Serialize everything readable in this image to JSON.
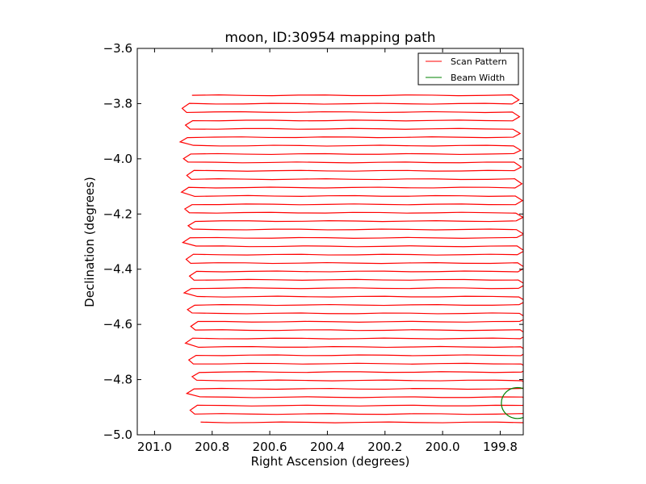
{
  "chart_data": {
    "type": "line",
    "title": "moon, ID:30954 mapping path",
    "xlabel": "Right Ascension (degrees)",
    "ylabel": "Declination (degrees)",
    "xlim": [
      201.06,
      199.72
    ],
    "ylim": [
      -5.0,
      -3.6
    ],
    "x_inverted": true,
    "xticks": [
      201.0,
      200.8,
      200.6,
      200.4,
      200.2,
      200.0,
      199.8
    ],
    "xtick_labels": [
      "201.0",
      "200.8",
      "200.6",
      "200.4",
      "200.2",
      "200.0",
      "199.8"
    ],
    "yticks": [
      -3.6,
      -3.8,
      -4.0,
      -4.2,
      -4.4,
      -4.6,
      -4.8,
      -5.0
    ],
    "ytick_labels": [
      "−3.6",
      "−3.8",
      "−4.0",
      "−4.2",
      "−4.4",
      "−4.6",
      "−4.8",
      "−5.0"
    ],
    "grid": false,
    "legend_position": "top-right",
    "series": [
      {
        "name": "Scan Pattern",
        "color": "#ff0000",
        "kind": "raster",
        "ra_left_start": 200.88,
        "ra_left_end": 200.85,
        "ra_right_start": 199.76,
        "ra_right_end": 199.72,
        "dec_top": -3.77,
        "dec_bottom": -4.955,
        "rows": 40
      },
      {
        "name": "Beam Width",
        "color": "#008000",
        "kind": "circle",
        "center_ra": 199.74,
        "center_dec": -4.885,
        "radius_deg": 0.056
      }
    ]
  }
}
